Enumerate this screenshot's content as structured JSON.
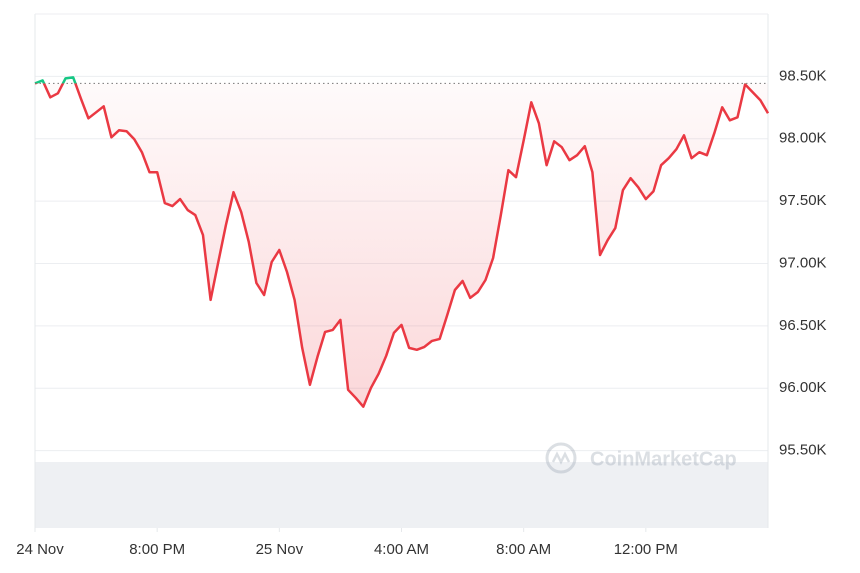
{
  "chart_data": {
    "type": "line",
    "watermark": "CoinMarketCap",
    "x": [
      16,
      16.25,
      16.5,
      16.75,
      17,
      17.25,
      17.5,
      17.75,
      18,
      18.25,
      18.5,
      18.75,
      19,
      19.25,
      19.5,
      19.75,
      20,
      20.25,
      20.5,
      20.75,
      21,
      21.25,
      21.5,
      21.75,
      22,
      22.25,
      22.5,
      22.75,
      23,
      23.25,
      23.5,
      23.75,
      24,
      24.25,
      24.5,
      24.75,
      25,
      25.25,
      25.5,
      25.75,
      26,
      26.25,
      26.5,
      26.75,
      27,
      27.25,
      27.5,
      27.75,
      28,
      28.25,
      28.5,
      28.75,
      29,
      29.25,
      29.5,
      29.75,
      30,
      30.25,
      30.5,
      30.75,
      31,
      31.25,
      31.5,
      31.75,
      32,
      32.25,
      32.5,
      32.75,
      33,
      33.25,
      33.5,
      33.75,
      34,
      34.25,
      34.5,
      34.75,
      35,
      35.25,
      35.5,
      35.75,
      36,
      36.25,
      36.5,
      36.75,
      37,
      37.25,
      37.5,
      37.75,
      38,
      38.25,
      38.5,
      38.75,
      39,
      39.25,
      39.5,
      39.75,
      40
    ],
    "values": [
      98444,
      98468,
      98332,
      98364,
      98484,
      98492,
      98324,
      98164,
      98212,
      98260,
      98012,
      98068,
      98060,
      97996,
      97892,
      97732,
      97732,
      97484,
      97460,
      97516,
      97428,
      97388,
      97228,
      96708,
      97012,
      97308,
      97572,
      97412,
      97172,
      96844,
      96748,
      97012,
      97108,
      96932,
      96708,
      96324,
      96028,
      96252,
      96452,
      96468,
      96548,
      95988,
      95924,
      95852,
      96004,
      96116,
      96260,
      96444,
      96508,
      96324,
      96308,
      96332,
      96380,
      96396,
      96588,
      96788,
      96860,
      96724,
      96772,
      96868,
      97044,
      97388,
      97748,
      97692,
      97988,
      98292,
      98124,
      97788,
      97980,
      97932,
      97828,
      97868,
      97940,
      97732,
      97068,
      97188,
      97284,
      97588,
      97684,
      97612,
      97516,
      97580,
      97788,
      97844,
      97916,
      98028,
      97844,
      97892,
      97868,
      98052,
      98252,
      98148,
      98172,
      98436,
      98372,
      98308,
      98204
    ],
    "reference": 98444,
    "color": "#ea3943",
    "up_color": "#16c784",
    "xlim": [
      16,
      40
    ],
    "xticks": [
      {
        "value": 16,
        "label": "24 Nov"
      },
      {
        "value": 20,
        "label": "8:00 PM"
      },
      {
        "value": 24,
        "label": "25 Nov"
      },
      {
        "value": 28,
        "label": "4:00 AM"
      },
      {
        "value": 32,
        "label": "8:00 AM"
      },
      {
        "value": 36,
        "label": "12:00 PM"
      }
    ],
    "ylim": [
      94880,
      99000
    ],
    "yticks": [
      {
        "value": 95500,
        "label": "95.50K"
      },
      {
        "value": 96000,
        "label": "96.00K"
      },
      {
        "value": 96500,
        "label": "96.50K"
      },
      {
        "value": 97000,
        "label": "97.00K"
      },
      {
        "value": 97500,
        "label": "97.50K"
      },
      {
        "value": 98000,
        "label": "98.00K"
      },
      {
        "value": 98500,
        "label": "98.50K"
      }
    ],
    "grid": true
  }
}
